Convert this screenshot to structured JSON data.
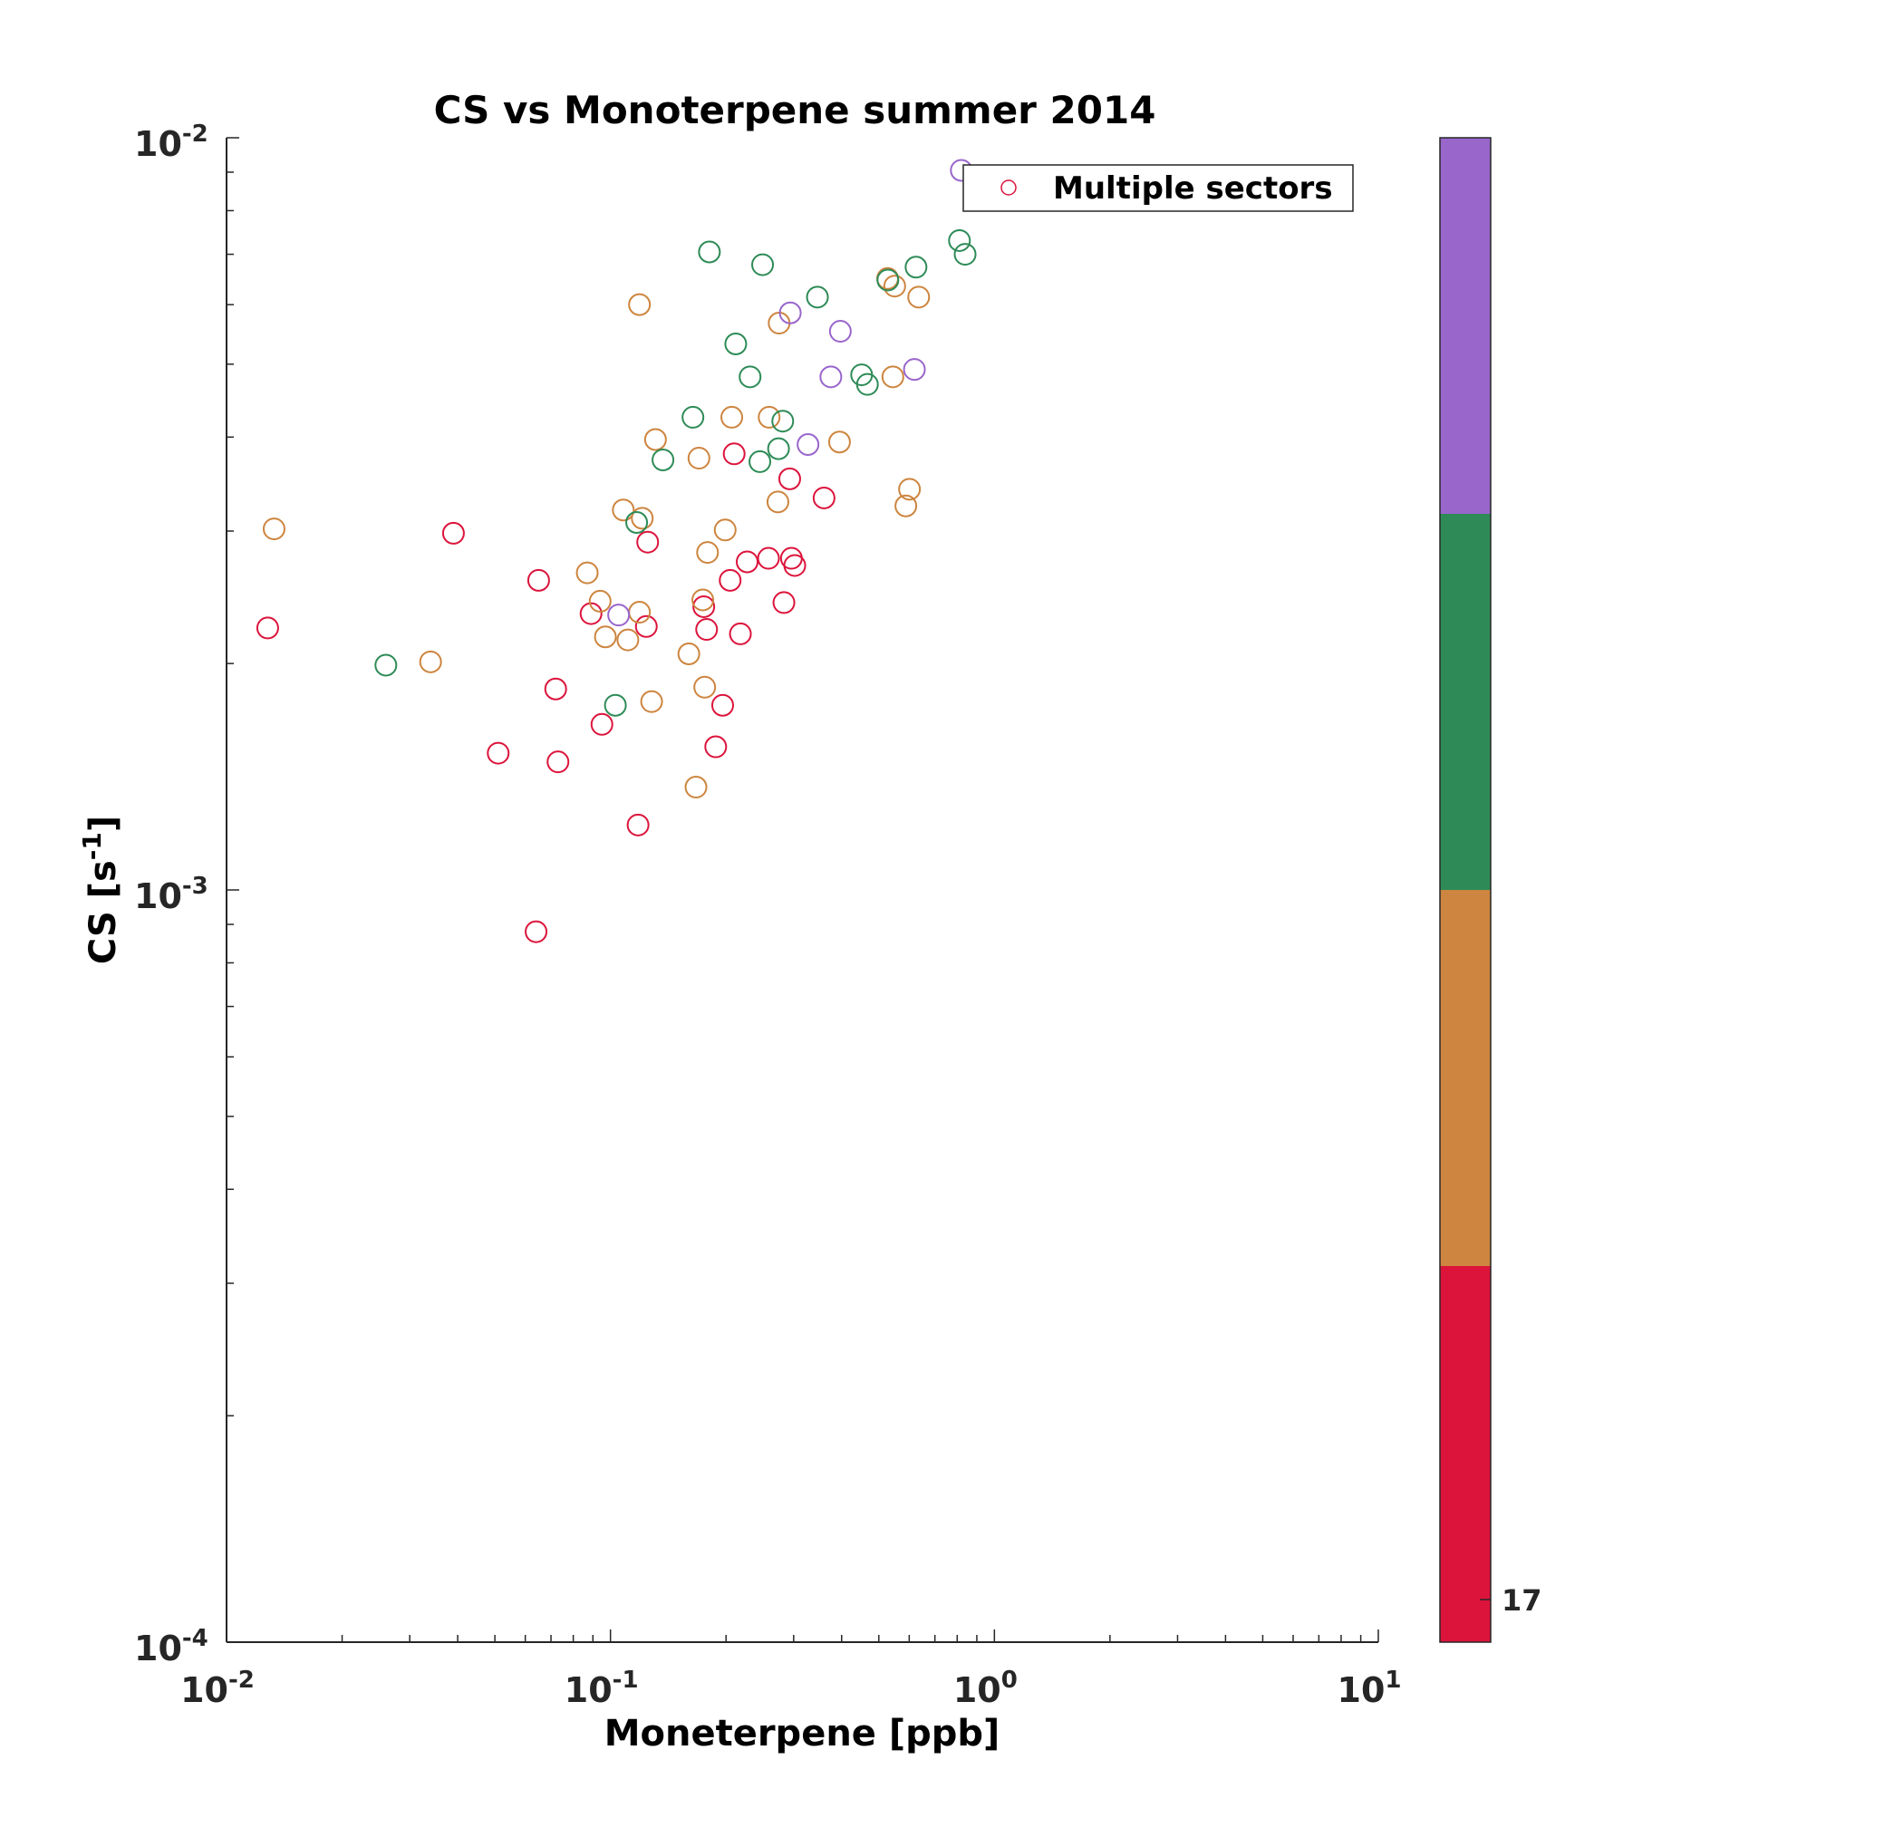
{
  "chart_data": {
    "type": "scatter",
    "title": "CS vs Monoterpene summer 2014",
    "xlabel": "Moneterpene [ppb]",
    "ylabel_main": "CS [s",
    "ylabel_exp": "-1",
    "ylabel_end": "]",
    "x_scale": "log",
    "y_scale": "log",
    "xlim": [
      0.01,
      10
    ],
    "ylim": [
      0.0001,
      0.01
    ],
    "x_ticks": [
      {
        "base": "10",
        "exp": "-2",
        "value": 0.01
      },
      {
        "base": "10",
        "exp": "-1",
        "value": 0.1
      },
      {
        "base": "10",
        "exp": "0",
        "value": 1
      },
      {
        "base": "10",
        "exp": "1",
        "value": 10
      }
    ],
    "y_ticks": [
      {
        "base": "10",
        "exp": "-4",
        "value": 0.0001
      },
      {
        "base": "10",
        "exp": "-3",
        "value": 0.001
      },
      {
        "base": "10",
        "exp": "-2",
        "value": 0.01
      }
    ],
    "legend": {
      "label": "Multiple sectors",
      "placement": "top-right",
      "marker_color": "#dc143c"
    },
    "grid": false,
    "colorbar": {
      "colors": [
        "#dc143c",
        "#cd853f",
        "#2e8b57",
        "#9966cc"
      ],
      "tick_label": "17"
    },
    "marker": "open-circle",
    "series": [
      {
        "color": "#dc143c",
        "points": [
          [
            0.0128,
            0.00223
          ],
          [
            0.039,
            0.00298
          ],
          [
            0.065,
            0.00258
          ],
          [
            0.072,
            0.00185
          ],
          [
            0.073,
            0.00148
          ],
          [
            0.051,
            0.00152
          ],
          [
            0.064,
            0.00088
          ],
          [
            0.089,
            0.00233
          ],
          [
            0.095,
            0.00166
          ],
          [
            0.118,
            0.00122
          ],
          [
            0.125,
            0.0029
          ],
          [
            0.124,
            0.00224
          ],
          [
            0.175,
            0.00238
          ],
          [
            0.178,
            0.00222
          ],
          [
            0.188,
            0.00155
          ],
          [
            0.196,
            0.00176
          ],
          [
            0.205,
            0.00258
          ],
          [
            0.21,
            0.0038
          ],
          [
            0.218,
            0.00219
          ],
          [
            0.227,
            0.00273
          ],
          [
            0.258,
            0.00276
          ],
          [
            0.283,
            0.00241
          ],
          [
            0.293,
            0.00352
          ],
          [
            0.296,
            0.00276
          ],
          [
            0.302,
            0.0027
          ],
          [
            0.36,
            0.00332
          ]
        ]
      },
      {
        "color": "#cd853f",
        "points": [
          [
            0.0133,
            0.00302
          ],
          [
            0.034,
            0.00201
          ],
          [
            0.087,
            0.00264
          ],
          [
            0.094,
            0.00242
          ],
          [
            0.097,
            0.00217
          ],
          [
            0.108,
            0.0032
          ],
          [
            0.111,
            0.00215
          ],
          [
            0.119,
            0.00234
          ],
          [
            0.121,
            0.00312
          ],
          [
            0.119,
            0.006
          ],
          [
            0.128,
            0.00178
          ],
          [
            0.131,
            0.00397
          ],
          [
            0.16,
            0.00206
          ],
          [
            0.167,
            0.00137
          ],
          [
            0.17,
            0.00375
          ],
          [
            0.174,
            0.00243
          ],
          [
            0.176,
            0.00186
          ],
          [
            0.179,
            0.00281
          ],
          [
            0.199,
            0.00301
          ],
          [
            0.207,
            0.00425
          ],
          [
            0.259,
            0.00425
          ],
          [
            0.273,
            0.00328
          ],
          [
            0.275,
            0.00567
          ],
          [
            0.395,
            0.00394
          ],
          [
            0.544,
            0.00481
          ],
          [
            0.527,
            0.0065
          ],
          [
            0.55,
            0.00635
          ],
          [
            0.588,
            0.00324
          ],
          [
            0.601,
            0.00341
          ],
          [
            0.635,
            0.00614
          ]
        ]
      },
      {
        "color": "#2e8b57",
        "points": [
          [
            0.026,
            0.00199
          ],
          [
            0.103,
            0.00176
          ],
          [
            0.117,
            0.00308
          ],
          [
            0.137,
            0.00373
          ],
          [
            0.164,
            0.00425
          ],
          [
            0.181,
            0.00705
          ],
          [
            0.212,
            0.00532
          ],
          [
            0.231,
            0.00481
          ],
          [
            0.245,
            0.00371
          ],
          [
            0.249,
            0.00678
          ],
          [
            0.274,
            0.00386
          ],
          [
            0.281,
            0.0042
          ],
          [
            0.346,
            0.00614
          ],
          [
            0.451,
            0.00484
          ],
          [
            0.467,
            0.0047
          ],
          [
            0.528,
            0.00647
          ],
          [
            0.625,
            0.00673
          ],
          [
            0.811,
            0.0073
          ],
          [
            0.839,
            0.007
          ]
        ]
      },
      {
        "color": "#9966cc",
        "points": [
          [
            0.105,
            0.00232
          ],
          [
            0.294,
            0.00585
          ],
          [
            0.327,
            0.00391
          ],
          [
            0.375,
            0.00481
          ],
          [
            0.397,
            0.00553
          ],
          [
            0.619,
            0.00492
          ],
          [
            0.82,
            0.00905
          ]
        ]
      }
    ]
  }
}
